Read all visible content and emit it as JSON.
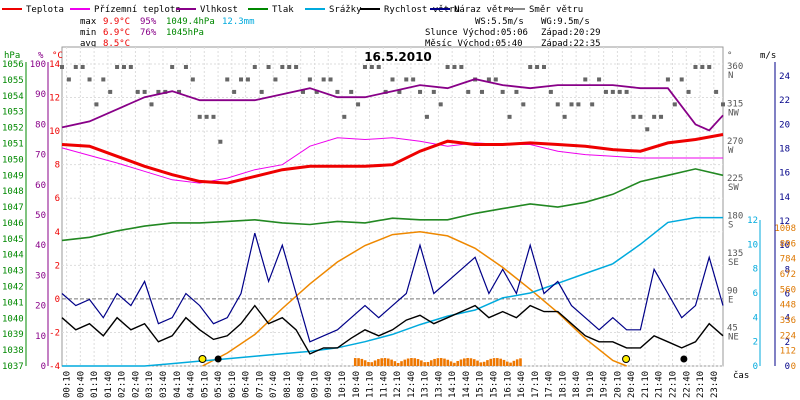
{
  "chart_data": {
    "type": "line",
    "title": "16.5.2010",
    "legend": [
      {
        "label": "Teplota",
        "color": "#ee0000"
      },
      {
        "label": "Přízemní teplota",
        "color": "#ee00ee"
      },
      {
        "label": "Vlhkost",
        "color": "#880088"
      },
      {
        "label": "Tlak",
        "color": "#008800"
      },
      {
        "label": "Srážky",
        "color": "#00aadd"
      },
      {
        "label": "Rychlost větru",
        "color": "#000000"
      },
      {
        "label": "Náraz větru",
        "color": "#000088"
      },
      {
        "label": "Směr větru",
        "color": "#888888"
      }
    ],
    "stats": {
      "max_label": "max",
      "max_temp": "9.9°C",
      "max_hum": "95%",
      "max_press": "1049.4hPa",
      "rain": "12.3mm",
      "min_label": "min",
      "min_temp": "6.9°C",
      "min_hum": "76%",
      "min_press": "1045hPa",
      "avg_label": "avg",
      "avg_temp": "8.5°C",
      "ws": "WS:5.5m/s",
      "wg": "WG:9.5m/s",
      "sun": "Slunce Východ:05:06",
      "sun_set": "Západ:20:29",
      "moon": "Měsíc  Východ:05:40",
      "moon_set": "Západ:22:35"
    },
    "axes_labels": {
      "hpa": "hPa",
      "pct": "%",
      "degc": "°C",
      "deg": "°",
      "ms": "m/s",
      "cas": "čas"
    },
    "press_ticks": [
      1037,
      1038,
      1039,
      1040,
      1041,
      1042,
      1043,
      1044,
      1045,
      1046,
      1047,
      1048,
      1049,
      1050,
      1051,
      1052,
      1053,
      1054,
      1055,
      1056
    ],
    "hum_ticks": [
      0,
      10,
      20,
      30,
      40,
      50,
      60,
      70,
      80,
      90,
      100
    ],
    "temp_ticks": [
      -4,
      -2,
      0,
      2,
      4,
      6,
      8,
      10,
      12,
      14
    ],
    "dir_ticks": [
      "360",
      "315",
      "270",
      "225",
      "180",
      "135",
      "90",
      "45"
    ],
    "dir_names": [
      "N",
      "NW",
      "W",
      "SW",
      "S",
      "SE",
      "E",
      "NE"
    ],
    "wind_ticks": [
      0,
      2,
      4,
      6,
      8,
      10,
      12,
      14,
      16,
      18,
      20,
      22,
      24
    ],
    "rain_ticks": [
      0,
      2,
      4,
      6,
      8,
      10,
      12
    ],
    "solar_ticks": [
      0,
      112,
      224,
      336,
      448,
      560,
      672,
      784,
      896,
      1008
    ],
    "time_ticks": [
      "00:10",
      "00:40",
      "01:10",
      "01:40",
      "02:10",
      "02:40",
      "03:10",
      "03:40",
      "04:10",
      "04:40",
      "05:10",
      "05:40",
      "06:10",
      "06:40",
      "07:10",
      "07:40",
      "08:10",
      "08:40",
      "09:10",
      "09:40",
      "10:10",
      "10:40",
      "11:10",
      "11:40",
      "12:10",
      "12:40",
      "13:10",
      "13:40",
      "14:10",
      "14:40",
      "15:10",
      "15:40",
      "16:10",
      "16:40",
      "17:10",
      "17:40",
      "18:10",
      "18:40",
      "19:10",
      "19:40",
      "20:10",
      "20:40",
      "21:10",
      "21:40",
      "22:10",
      "22:40",
      "23:10",
      "23:40"
    ],
    "series": {
      "temperature": {
        "t": [
          0,
          1,
          2,
          3,
          4,
          5,
          6,
          7,
          8,
          9,
          10,
          11,
          12,
          13,
          14,
          15,
          16,
          17,
          18,
          19,
          20,
          21,
          22,
          23,
          24
        ],
        "v": [
          9.2,
          9.1,
          8.5,
          7.9,
          7.4,
          7.0,
          6.9,
          7.3,
          7.7,
          7.9,
          7.9,
          7.9,
          8.0,
          8.8,
          9.4,
          9.2,
          9.2,
          9.3,
          9.2,
          9.1,
          8.9,
          8.8,
          9.3,
          9.5,
          9.8
        ]
      },
      "ground_temp": {
        "t": [
          0,
          2,
          4,
          5,
          6,
          7,
          8,
          9,
          10,
          11,
          12,
          13,
          14,
          15,
          16,
          17,
          18,
          19,
          20,
          21,
          22,
          23,
          24
        ],
        "v": [
          9.0,
          8.1,
          7.1,
          6.9,
          7.2,
          7.7,
          8.0,
          9.1,
          9.6,
          9.5,
          9.6,
          9.4,
          9.1,
          9.3,
          9.2,
          9.2,
          8.8,
          8.6,
          8.5,
          8.4,
          8.4,
          8.4,
          8.4
        ]
      },
      "humidity": {
        "t": [
          0,
          1,
          2,
          3,
          4,
          5,
          6,
          7,
          8,
          9,
          10,
          11,
          12,
          13,
          14,
          15,
          16,
          17,
          18,
          19,
          20,
          21,
          22,
          23,
          23.5,
          24
        ],
        "v": [
          79,
          81,
          85,
          89,
          91,
          88,
          88,
          88,
          90,
          92,
          89,
          89,
          91,
          93,
          92,
          95,
          93,
          92,
          93,
          93,
          93,
          92,
          92,
          80,
          78,
          83
        ]
      },
      "pressure": {
        "t": [
          0,
          1,
          2,
          3,
          4,
          5,
          6,
          7,
          8,
          9,
          10,
          11,
          12,
          13,
          14,
          15,
          16,
          17,
          18,
          19,
          20,
          21,
          22,
          23,
          24
        ],
        "v": [
          1044.9,
          1045.1,
          1045.5,
          1045.8,
          1046.0,
          1046.0,
          1046.1,
          1046.2,
          1046.0,
          1045.9,
          1046.1,
          1046.0,
          1046.3,
          1046.2,
          1046.2,
          1046.6,
          1046.9,
          1047.2,
          1047.0,
          1047.3,
          1047.8,
          1048.6,
          1049.0,
          1049.4,
          1049.0
        ]
      },
      "rain": {
        "t": [
          0,
          1,
          2,
          3,
          4,
          5,
          6,
          7,
          8,
          9,
          10,
          11,
          12,
          13,
          14,
          15,
          16,
          17,
          18,
          19,
          20,
          21,
          22,
          23,
          24
        ],
        "v": [
          0,
          0,
          0,
          0,
          0.2,
          0.4,
          0.6,
          0.8,
          1.0,
          1.2,
          1.5,
          2.0,
          2.6,
          3.4,
          4.1,
          4.6,
          5.6,
          6.0,
          6.8,
          7.6,
          8.4,
          10.0,
          11.8,
          12.2,
          12.2
        ]
      },
      "wind_speed": {
        "t": [
          0,
          0.5,
          1,
          1.5,
          2,
          2.5,
          3,
          3.5,
          4,
          4.5,
          5,
          5.5,
          6,
          6.5,
          7,
          7.5,
          8,
          8.5,
          9,
          9.5,
          10,
          10.5,
          11,
          11.5,
          12,
          12.5,
          13,
          13.5,
          14,
          14.5,
          15,
          15.5,
          16,
          16.5,
          17,
          17.5,
          18,
          18.5,
          19,
          19.5,
          20,
          20.5,
          21,
          21.5,
          22,
          22.5,
          23,
          23.5,
          24
        ],
        "v": [
          4,
          3,
          3.5,
          2.5,
          4,
          3,
          3.5,
          2,
          2.5,
          4,
          3,
          2.2,
          2.5,
          3.5,
          5,
          3.5,
          4,
          3,
          1,
          1.5,
          1.5,
          2.3,
          3,
          2.5,
          3,
          3.8,
          4.2,
          3.5,
          4,
          4.5,
          5,
          4,
          4.5,
          4,
          5,
          4.5,
          4.5,
          3.5,
          2.5,
          2,
          2,
          1.5,
          1.5,
          2.5,
          2,
          1.5,
          2,
          3.5,
          2.5
        ]
      },
      "wind_gust": {
        "t": [
          0,
          0.5,
          1,
          1.5,
          2,
          2.5,
          3,
          3.5,
          4,
          4.5,
          5,
          5.5,
          6,
          6.5,
          7,
          7.5,
          8,
          8.5,
          9,
          9.5,
          10,
          10.5,
          11,
          11.5,
          12,
          12.5,
          13,
          13.5,
          14,
          14.5,
          15,
          15.5,
          16,
          16.5,
          17,
          17.5,
          18,
          18.5,
          19,
          19.5,
          20,
          20.5,
          21,
          21.5,
          22,
          22.5,
          23,
          23.5,
          24
        ],
        "v": [
          6,
          5,
          5.5,
          4,
          6,
          5,
          7,
          3.5,
          4,
          6,
          5,
          3.5,
          4,
          6,
          11,
          7,
          10,
          6,
          2,
          2.5,
          3,
          4,
          5,
          4,
          5,
          6,
          10,
          6,
          7,
          8,
          9,
          6,
          8,
          6,
          10,
          6,
          7,
          5,
          4,
          3,
          4,
          3,
          3,
          8,
          6,
          4,
          5,
          9,
          5
        ]
      },
      "wind_dir": {
        "t": [
          0,
          1,
          2,
          3,
          4,
          5,
          6,
          7,
          8,
          9,
          10,
          11,
          12,
          13,
          14,
          15,
          16,
          17,
          18,
          19,
          20,
          21,
          22,
          23,
          24
        ],
        "v": [
          360,
          345,
          360,
          330,
          360,
          300,
          345,
          360,
          360,
          345,
          330,
          360,
          345,
          330,
          360,
          345,
          330,
          360,
          315,
          345,
          330,
          300,
          345,
          360,
          315
        ]
      },
      "solar": {
        "t": [
          5.1,
          6,
          7,
          8,
          9,
          10,
          11,
          12,
          13,
          14,
          15,
          16,
          17,
          18,
          19,
          20,
          20.5
        ],
        "v": [
          0,
          95,
          230,
          420,
          600,
          760,
          880,
          960,
          980,
          950,
          860,
          720,
          560,
          390,
          200,
          40,
          0
        ]
      }
    }
  }
}
